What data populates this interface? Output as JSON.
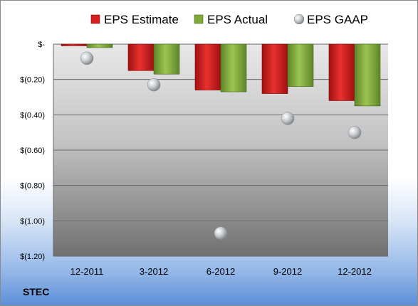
{
  "chart_data": {
    "type": "bar",
    "title": "",
    "xlabel": "",
    "ylabel": "",
    "categories": [
      "12-2011",
      "3-2012",
      "6-2012",
      "9-2012",
      "12-2012"
    ],
    "series": [
      {
        "name": "EPS Estimate",
        "kind": "bar",
        "color": "#d42020",
        "values": [
          -0.01,
          -0.15,
          -0.26,
          -0.28,
          -0.32
        ]
      },
      {
        "name": "EPS Actual",
        "kind": "bar",
        "color": "#7fa83a",
        "values": [
          -0.02,
          -0.17,
          -0.27,
          -0.24,
          -0.35
        ]
      },
      {
        "name": "EPS GAAP",
        "kind": "marker",
        "color": "#b8bcc0",
        "values": [
          -0.08,
          -0.23,
          -1.07,
          -0.42,
          -0.5
        ]
      }
    ],
    "ylim": [
      -1.2,
      0
    ],
    "yticks": [
      0,
      -0.2,
      -0.4,
      -0.6,
      -0.8,
      -1.0,
      -1.2
    ],
    "ytick_labels": [
      "$-",
      "$(0.20)",
      "$(0.40)",
      "$(0.60)",
      "$(0.80)",
      "$(1.00)",
      "$(1.20)"
    ],
    "grid": true,
    "legend_position": "top"
  },
  "ticker": "STEC"
}
